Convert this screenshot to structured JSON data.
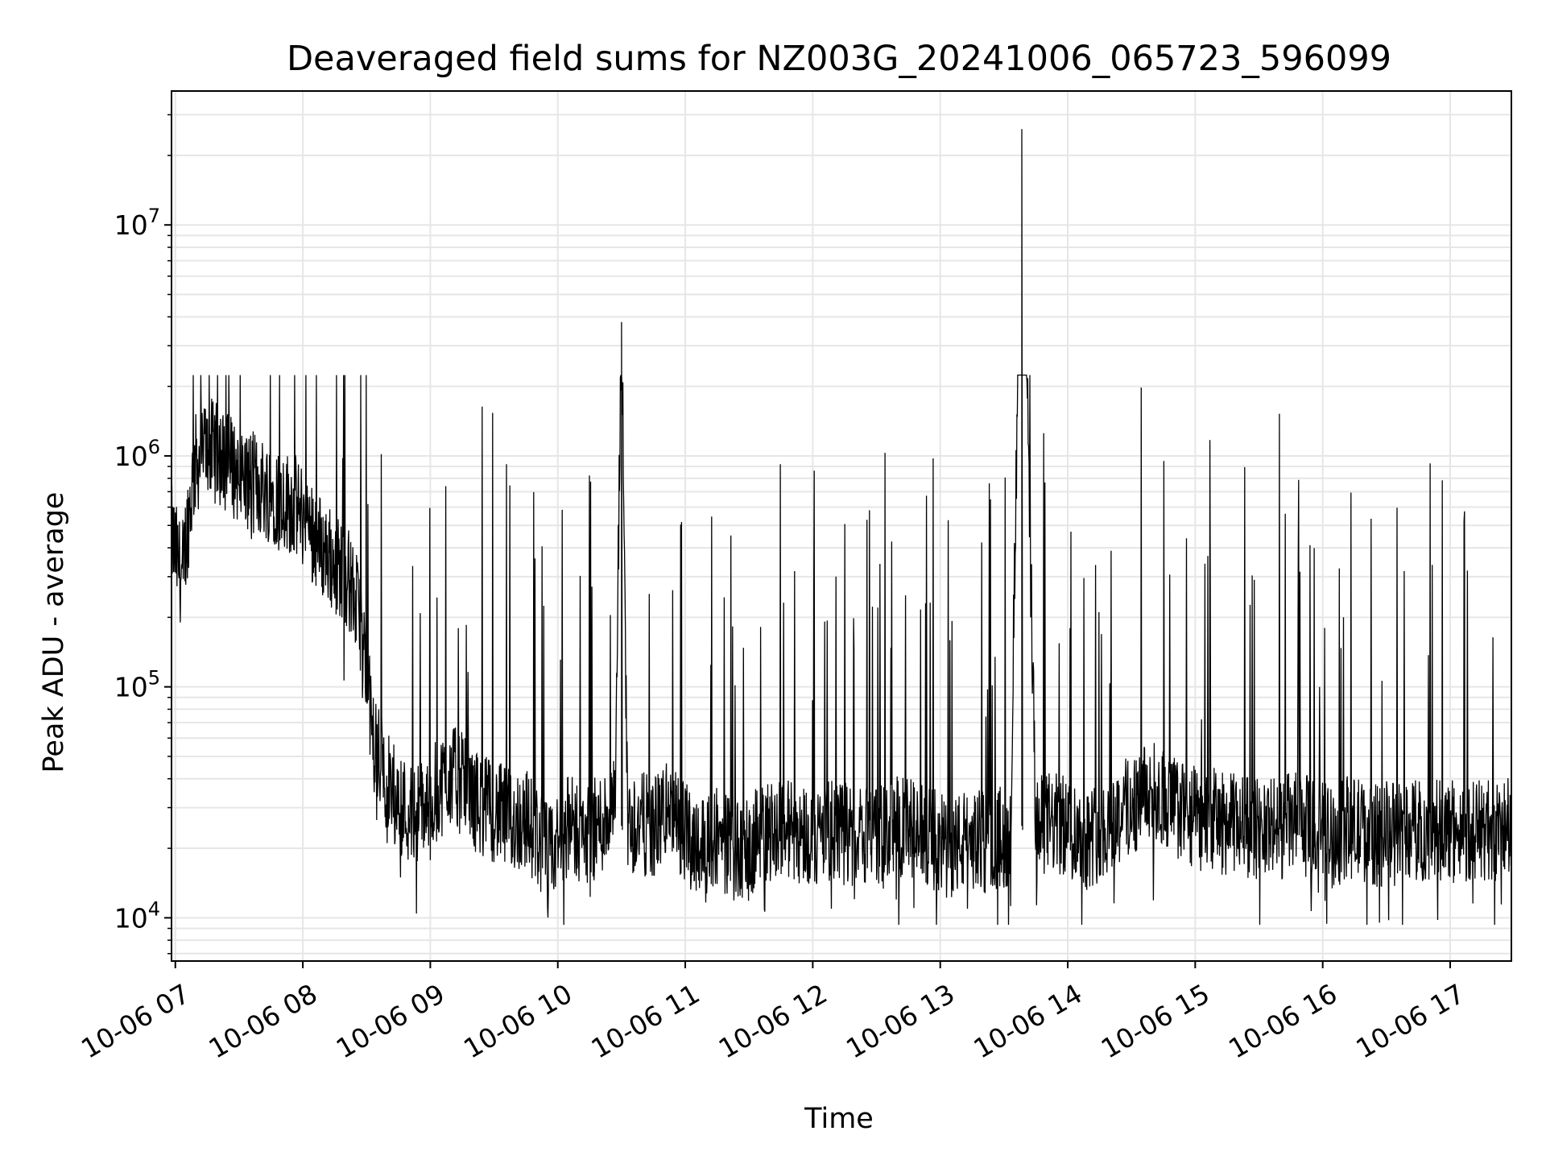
{
  "chart_data": {
    "type": "line",
    "title": "Deaveraged field sums for NZ003G_20241006_065723_596099",
    "xlabel": "Time",
    "ylabel": "Peak ADU - average",
    "yscale": "log",
    "ylim": [
      6500,
      38000000
    ],
    "xlim_hours": [
      6.97,
      17.48
    ],
    "grid": true,
    "grid_minor": true,
    "line_color": "#000000",
    "x_ticks": [
      {
        "label": "10-06 07",
        "hour": 7
      },
      {
        "label": "10-06 08",
        "hour": 8
      },
      {
        "label": "10-06 09",
        "hour": 9
      },
      {
        "label": "10-06 10",
        "hour": 10
      },
      {
        "label": "10-06 11",
        "hour": 11
      },
      {
        "label": "10-06 12",
        "hour": 12
      },
      {
        "label": "10-06 13",
        "hour": 13
      },
      {
        "label": "10-06 14",
        "hour": 14
      },
      {
        "label": "10-06 15",
        "hour": 15
      },
      {
        "label": "10-06 16",
        "hour": 16
      },
      {
        "label": "10-06 17",
        "hour": 17
      }
    ],
    "y_ticks": [
      {
        "base": "10",
        "exp": "4",
        "value": 10000
      },
      {
        "base": "10",
        "exp": "5",
        "value": 100000
      },
      {
        "base": "10",
        "exp": "6",
        "value": 1000000
      },
      {
        "base": "10",
        "exp": "7",
        "value": 10000000
      }
    ],
    "series": [
      {
        "x": [
          6.97,
          7.05,
          7.15,
          7.25,
          7.35,
          7.45,
          7.55,
          7.65,
          7.75,
          7.85,
          7.95,
          8.05,
          8.15,
          8.25,
          8.35,
          8.45,
          8.55,
          8.65,
          8.75,
          8.85,
          8.95,
          9.05,
          9.15,
          9.25,
          9.35,
          9.45,
          9.55,
          9.65,
          9.75,
          9.85,
          9.95,
          10.05,
          10.15,
          10.25,
          10.35,
          10.45,
          10.5,
          10.55,
          10.65,
          10.75,
          10.85,
          10.95,
          11.05,
          11.15,
          11.25,
          11.35,
          11.45,
          11.55,
          11.65,
          11.75,
          11.85,
          11.95,
          12.05,
          12.15,
          12.25,
          12.35,
          12.45,
          12.55,
          12.65,
          12.75,
          12.85,
          12.95,
          13.05,
          13.15,
          13.25,
          13.35,
          13.45,
          13.55,
          13.64,
          13.75,
          13.85,
          13.95,
          14.05,
          14.15,
          14.25,
          14.35,
          14.45,
          14.55,
          14.65,
          14.75,
          14.85,
          14.95,
          15.05,
          15.15,
          15.25,
          15.35,
          15.45,
          15.55,
          15.65,
          15.75,
          15.85,
          15.95,
          16.05,
          16.1,
          16.2,
          16.3,
          16.4,
          16.45,
          16.5
        ],
        "values": [
          450000,
          300000,
          900000,
          1100000,
          1000000,
          900000,
          800000,
          750000,
          700000,
          650000,
          600000,
          500000,
          400000,
          350000,
          300000,
          200000,
          60000,
          40000,
          32000,
          28000,
          30000,
          35000,
          42000,
          38000,
          32000,
          30000,
          28000,
          26000,
          27000,
          22000,
          18000,
          25000,
          24000,
          23000,
          26000,
          30000,
          3800000,
          25000,
          26000,
          24000,
          30000,
          25000,
          22000,
          21000,
          23000,
          20000,
          18000,
          22000,
          24000,
          25000,
          24000,
          23000,
          22000,
          24000,
          23000,
          22000,
          24000,
          23000,
          25000,
          24000,
          23000,
          22000,
          20000,
          21000,
          22000,
          21000,
          22000,
          23000,
          26000000,
          24000,
          26000,
          25000,
          24000,
          22000,
          24000,
          26000,
          30000,
          32000,
          35000,
          33000,
          30000,
          28000,
          26000,
          27000,
          25000,
          26000,
          24000,
          25000,
          24000,
          26000,
          25000,
          24000,
          23000,
          22000,
          25000,
          24000,
          23000,
          22000,
          24000
        ]
      }
    ]
  }
}
